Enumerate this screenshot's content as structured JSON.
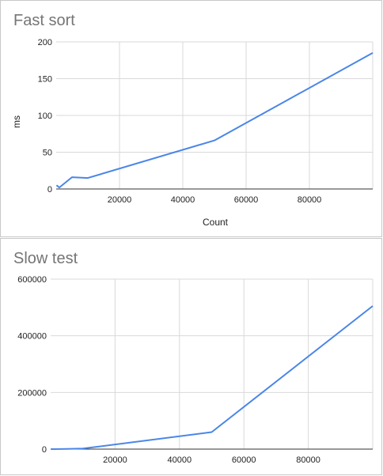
{
  "line_color": "#4a86e8",
  "chart_data": [
    {
      "type": "line",
      "title": "Fast sort",
      "xlabel": "Count",
      "ylabel": "ms",
      "x": [
        100,
        1000,
        5000,
        10000,
        50000,
        100000
      ],
      "series": [
        {
          "values": [
            5,
            2,
            16,
            15,
            66,
            185
          ]
        }
      ],
      "xlim": [
        0,
        100000
      ],
      "ylim": [
        0,
        200
      ],
      "xticks": [
        20000,
        40000,
        60000,
        80000
      ],
      "yticks": [
        0,
        50,
        100,
        150,
        200
      ],
      "xtick_labels": [
        "20000",
        "40000",
        "60000",
        "80000"
      ],
      "ytick_labels": [
        "0",
        "50",
        "100",
        "150",
        "200"
      ],
      "grid": true,
      "legend": "none"
    },
    {
      "type": "line",
      "title": "Slow test",
      "xlabel": "",
      "ylabel": "",
      "x": [
        100,
        1000,
        5000,
        10000,
        50000,
        100000
      ],
      "series": [
        {
          "values": [
            0,
            100,
            500,
            2000,
            60000,
            505000
          ]
        }
      ],
      "xlim": [
        0,
        100000
      ],
      "ylim": [
        0,
        600000
      ],
      "xticks": [
        20000,
        40000,
        60000,
        80000
      ],
      "yticks": [
        0,
        200000,
        400000,
        600000
      ],
      "xtick_labels": [
        "20000",
        "40000",
        "60000",
        "80000"
      ],
      "ytick_labels": [
        "0",
        "200000",
        "400000",
        "600000"
      ],
      "grid": true,
      "legend": "none"
    }
  ]
}
